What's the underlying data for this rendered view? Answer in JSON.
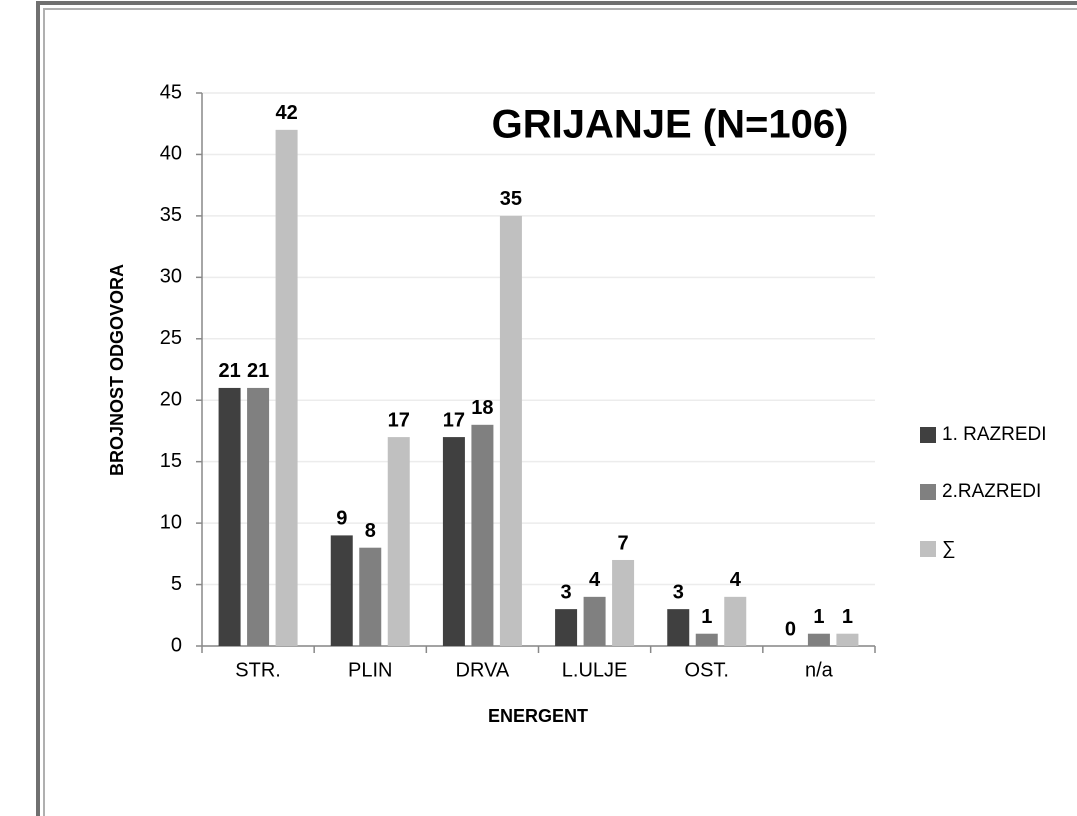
{
  "chart_data": {
    "type": "bar",
    "title": "GRIJANJE (N=106)",
    "x_label": "ENERGENT",
    "y_label": "BROJNOST ODGOVORA",
    "categories": [
      "STR.",
      "PLIN",
      "DRVA",
      "L.ULJE",
      "OST.",
      "n/a"
    ],
    "series": [
      {
        "name": "1. RAZREDI",
        "color": "#404040",
        "values": [
          21,
          9,
          17,
          3,
          3,
          0
        ]
      },
      {
        "name": "2.RAZREDI",
        "color": "#808080",
        "values": [
          21,
          8,
          18,
          4,
          1,
          1
        ]
      },
      {
        "name": "∑",
        "color": "#c0c0c0",
        "values": [
          42,
          17,
          35,
          7,
          4,
          1
        ]
      }
    ],
    "ylim": [
      0,
      45
    ],
    "yticks": [
      0,
      5,
      10,
      15,
      20,
      25,
      30,
      35,
      40,
      45
    ],
    "grid": true,
    "legend": "right"
  }
}
